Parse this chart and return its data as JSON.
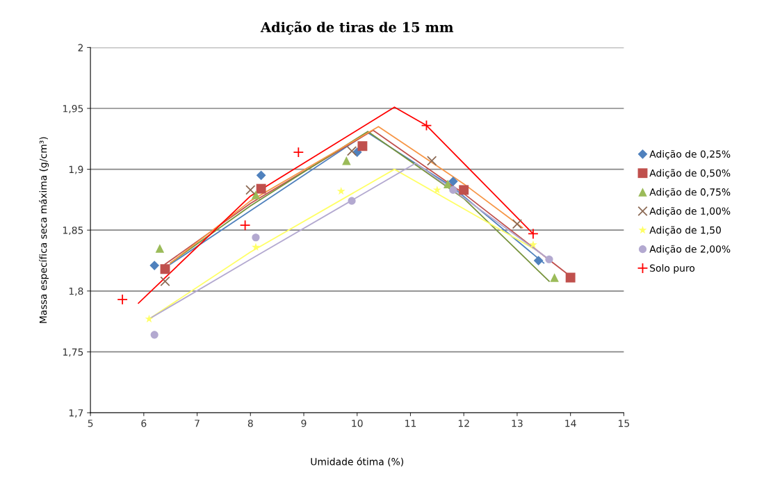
{
  "chart_data": {
    "type": "scatter",
    "title": "Adição de tiras de 15 mm",
    "xlabel": "Umidade ótima (%)",
    "ylabel": "Massa específica seca máxima (g/cm³)",
    "xlim": [
      5,
      15
    ],
    "xticks": [
      5,
      6,
      7,
      8,
      9,
      10,
      11,
      12,
      13,
      14,
      15
    ],
    "ylim": [
      1.7,
      2.0
    ],
    "yticks": [
      {
        "value": 1.7,
        "label": "1,7"
      },
      {
        "value": 1.75,
        "label": "1,75"
      },
      {
        "value": 1.8,
        "label": "1,8"
      },
      {
        "value": 1.85,
        "label": "1,85"
      },
      {
        "value": 1.9,
        "label": "1,9"
      },
      {
        "value": 1.95,
        "label": "1,95"
      },
      {
        "value": 2.0,
        "label": "2"
      }
    ],
    "grid": "y",
    "legend": "right",
    "series": [
      {
        "name": "Adição de 0,25%",
        "color": "#4f81bd",
        "marker": "diamond",
        "x": [
          6.2,
          8.2,
          10.0,
          11.8,
          13.4
        ],
        "values": [
          1.821,
          1.895,
          1.914,
          1.89,
          1.825
        ]
      },
      {
        "name": "Adição de 0,50%",
        "color": "#c0504d",
        "marker": "square",
        "x": [
          6.4,
          8.2,
          10.1,
          12.0,
          14.0
        ],
        "values": [
          1.818,
          1.884,
          1.919,
          1.883,
          1.811
        ]
      },
      {
        "name": "Adição de 0,75%",
        "color": "#9bbb59",
        "marker": "triangle",
        "x": [
          6.3,
          8.1,
          9.8,
          11.7,
          13.7
        ],
        "values": [
          1.835,
          1.879,
          1.907,
          1.888,
          1.811
        ]
      },
      {
        "name": "Adição de 1,00%",
        "color": "#8c6a55",
        "marker": "cross",
        "x": [
          6.4,
          8.0,
          9.9,
          11.4,
          13.0
        ],
        "values": [
          1.808,
          1.883,
          1.915,
          1.907,
          1.855
        ]
      },
      {
        "name": "Adição de 1,50",
        "color": "#ffff66",
        "marker": "star",
        "x": [
          6.1,
          8.1,
          9.7,
          11.5,
          13.3
        ],
        "values": [
          1.777,
          1.836,
          1.882,
          1.883,
          1.838
        ]
      },
      {
        "name": "Adição de 2,00%",
        "color": "#b3a9d0",
        "marker": "circle",
        "x": [
          6.2,
          8.1,
          9.9,
          11.8,
          13.6
        ],
        "values": [
          1.764,
          1.844,
          1.874,
          1.883,
          1.826
        ]
      },
      {
        "name": "Solo puro",
        "color": "#ff0000",
        "marker": "plus",
        "x": [
          5.6,
          7.9,
          8.9,
          11.3,
          13.3
        ],
        "values": [
          1.793,
          1.854,
          1.914,
          1.936,
          1.847
        ]
      },
      {
        "type": "line",
        "color": "#4f81bd",
        "x": [
          6.5,
          8.0,
          10.2,
          11.8,
          13.5
        ],
        "values": [
          1.822,
          1.866,
          1.93,
          1.885,
          1.823
        ]
      },
      {
        "type": "line",
        "color": "#c0504d",
        "x": [
          6.4,
          8.0,
          10.3,
          12.0,
          14.0
        ],
        "values": [
          1.822,
          1.872,
          1.932,
          1.88,
          1.812
        ]
      },
      {
        "type": "line",
        "color": "#77933c",
        "x": [
          6.5,
          8.0,
          10.2,
          12.0,
          13.6
        ],
        "values": [
          1.823,
          1.87,
          1.931,
          1.876,
          1.808
        ]
      },
      {
        "type": "line",
        "color": "#f79646",
        "x": [
          6.5,
          8.0,
          10.4,
          12.0,
          13.1
        ],
        "values": [
          1.823,
          1.874,
          1.935,
          1.888,
          1.852
        ]
      },
      {
        "type": "line",
        "color": "#ffff66",
        "x": [
          6.1,
          8.0,
          10.7,
          13.3
        ],
        "values": [
          1.777,
          1.832,
          1.9,
          1.835
        ]
      },
      {
        "type": "line",
        "color": "#b3a9d0",
        "x": [
          6.1,
          8.0,
          11.1,
          13.6
        ],
        "values": [
          1.777,
          1.826,
          1.905,
          1.826
        ]
      },
      {
        "type": "line",
        "color": "#ff0000",
        "x": [
          5.9,
          8.0,
          10.7,
          11.3,
          13.3
        ],
        "values": [
          1.79,
          1.878,
          1.951,
          1.936,
          1.847
        ]
      }
    ]
  }
}
